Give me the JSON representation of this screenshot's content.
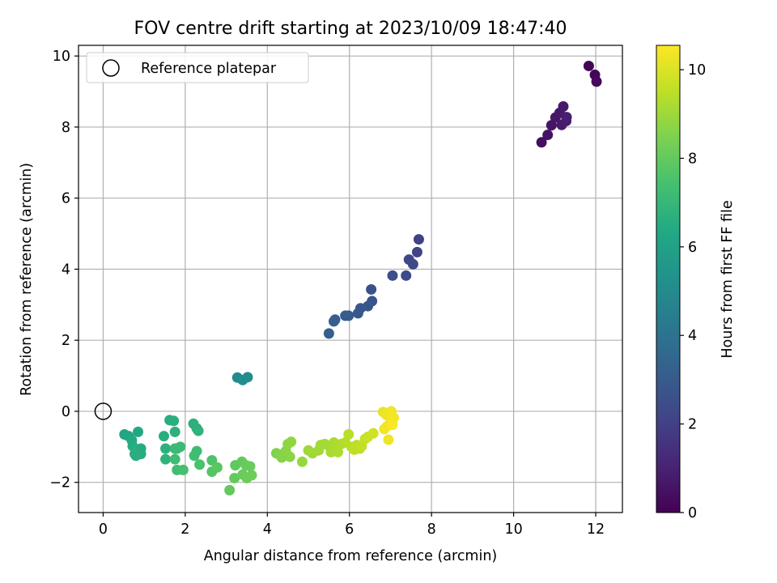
{
  "chart_data": {
    "type": "scatter",
    "title": "FOV centre drift starting at 2023/10/09 18:47:40",
    "xlabel": "Angular distance from reference (arcmin)",
    "ylabel": "Rotation from reference (arcmin)",
    "xlim": [
      -0.6,
      12.65
    ],
    "ylim": [
      -2.85,
      10.3
    ],
    "xticks": [
      0,
      2,
      4,
      6,
      8,
      10,
      12
    ],
    "yticks": [
      -2,
      0,
      2,
      4,
      6,
      8,
      10
    ],
    "xtick_labels": [
      "0",
      "2",
      "4",
      "6",
      "8",
      "10",
      "12"
    ],
    "ytick_labels": [
      "−2",
      "0",
      "2",
      "4",
      "6",
      "8",
      "10"
    ],
    "grid": true,
    "legend": {
      "label": "Reference platepar",
      "position": "top-left"
    },
    "reference_point": {
      "x": 0,
      "y": 0
    },
    "colorbar": {
      "label": "Hours from first FF file",
      "range": [
        0,
        10.55
      ],
      "ticks": [
        0,
        2,
        4,
        6,
        8,
        10
      ],
      "tick_labels": [
        "0",
        "2",
        "4",
        "6",
        "8",
        "10"
      ],
      "colormap": "viridis"
    },
    "points": [
      [
        11.83,
        9.72,
        0.1
      ],
      [
        11.98,
        9.47,
        0.15
      ],
      [
        12.02,
        9.28,
        0.2
      ],
      [
        10.68,
        7.57,
        0.4
      ],
      [
        10.83,
        7.78,
        0.5
      ],
      [
        10.92,
        8.05,
        0.6
      ],
      [
        11.02,
        8.27,
        0.65
      ],
      [
        11.12,
        8.4,
        0.7
      ],
      [
        11.21,
        8.58,
        0.75
      ],
      [
        11.17,
        8.06,
        0.8
      ],
      [
        11.28,
        8.17,
        0.85
      ],
      [
        11.29,
        8.28,
        0.9
      ],
      [
        7.69,
        4.84,
        2.0
      ],
      [
        7.65,
        4.48,
        2.1
      ],
      [
        7.45,
        4.27,
        2.2
      ],
      [
        7.55,
        4.14,
        2.3
      ],
      [
        7.38,
        3.82,
        2.4
      ],
      [
        7.05,
        3.82,
        2.5
      ],
      [
        6.53,
        3.43,
        2.6
      ],
      [
        6.55,
        3.1,
        2.7
      ],
      [
        6.45,
        2.96,
        2.8
      ],
      [
        6.27,
        2.9,
        2.85
      ],
      [
        6.21,
        2.76,
        2.9
      ],
      [
        5.98,
        2.69,
        3.0
      ],
      [
        5.9,
        2.69,
        3.05
      ],
      [
        5.65,
        2.58,
        3.1
      ],
      [
        5.62,
        2.53,
        3.15
      ],
      [
        5.5,
        2.19,
        3.2
      ],
      [
        3.27,
        0.95,
        5.0
      ],
      [
        3.4,
        0.88,
        5.05
      ],
      [
        3.52,
        0.96,
        5.1
      ],
      [
        0.52,
        -0.65,
        6.2
      ],
      [
        0.62,
        -0.7,
        6.3
      ],
      [
        0.7,
        -0.82,
        6.4
      ],
      [
        0.72,
        -0.98,
        6.5
      ],
      [
        0.77,
        -1.2,
        6.6
      ],
      [
        0.85,
        -1.1,
        6.7
      ],
      [
        0.92,
        -1.05,
        6.5
      ],
      [
        0.92,
        -1.2,
        6.5
      ],
      [
        0.85,
        -0.58,
        6.3
      ],
      [
        0.8,
        -1.25,
        6.6
      ],
      [
        1.48,
        -0.7,
        6.6
      ],
      [
        1.52,
        -1.05,
        6.7
      ],
      [
        1.52,
        -1.35,
        6.8
      ],
      [
        1.62,
        -0.25,
        6.5
      ],
      [
        1.72,
        -0.27,
        6.6
      ],
      [
        1.75,
        -0.58,
        6.7
      ],
      [
        1.75,
        -1.05,
        7.0
      ],
      [
        1.8,
        -1.05,
        7.1
      ],
      [
        1.88,
        -1.0,
        7.1
      ],
      [
        1.75,
        -1.35,
        7.2
      ],
      [
        1.8,
        -1.65,
        7.3
      ],
      [
        1.95,
        -1.65,
        7.4
      ],
      [
        2.2,
        -0.35,
        6.7
      ],
      [
        2.28,
        -0.48,
        6.7
      ],
      [
        2.32,
        -0.55,
        6.8
      ],
      [
        2.28,
        -1.12,
        7.2
      ],
      [
        2.22,
        -1.25,
        7.3
      ],
      [
        2.35,
        -1.5,
        7.5
      ],
      [
        2.65,
        -1.38,
        7.6
      ],
      [
        2.65,
        -1.7,
        7.7
      ],
      [
        2.78,
        -1.58,
        7.8
      ],
      [
        3.22,
        -1.52,
        7.9
      ],
      [
        3.38,
        -1.42,
        8.0
      ],
      [
        3.48,
        -1.52,
        8.1
      ],
      [
        3.58,
        -1.55,
        8.1
      ],
      [
        3.2,
        -1.88,
        8.0
      ],
      [
        3.4,
        -1.78,
        8.1
      ],
      [
        3.5,
        -1.88,
        8.15
      ],
      [
        3.62,
        -1.8,
        8.2
      ],
      [
        3.08,
        -2.22,
        8.0
      ],
      [
        4.22,
        -1.18,
        8.5
      ],
      [
        4.3,
        -1.22,
        8.6
      ],
      [
        4.35,
        -1.3,
        8.6
      ],
      [
        4.45,
        -1.12,
        8.7
      ],
      [
        4.5,
        -0.92,
        8.75
      ],
      [
        4.58,
        -0.86,
        8.8
      ],
      [
        4.55,
        -1.28,
        8.7
      ],
      [
        4.85,
        -1.42,
        8.9
      ],
      [
        5.0,
        -1.1,
        9.0
      ],
      [
        5.1,
        -1.18,
        9.0
      ],
      [
        5.25,
        -1.1,
        9.05
      ],
      [
        5.3,
        -0.95,
        9.1
      ],
      [
        5.4,
        -0.92,
        9.1
      ],
      [
        5.5,
        -0.98,
        9.15
      ],
      [
        5.55,
        -1.15,
        9.2
      ],
      [
        5.62,
        -0.88,
        9.2
      ],
      [
        5.7,
        -1.05,
        9.25
      ],
      [
        5.72,
        -1.15,
        9.25
      ],
      [
        5.8,
        -0.92,
        9.3
      ],
      [
        5.9,
        -0.88,
        9.35
      ],
      [
        5.98,
        -0.65,
        9.4
      ],
      [
        6.05,
        -1.0,
        9.45
      ],
      [
        6.12,
        -1.08,
        9.5
      ],
      [
        6.18,
        -0.95,
        9.5
      ],
      [
        6.25,
        -1.05,
        9.55
      ],
      [
        6.3,
        -0.98,
        9.6
      ],
      [
        6.38,
        -0.78,
        9.65
      ],
      [
        6.45,
        -0.72,
        9.7
      ],
      [
        6.58,
        -0.62,
        9.8
      ],
      [
        6.82,
        -0.02,
        10.2
      ],
      [
        6.9,
        -0.1,
        10.25
      ],
      [
        6.95,
        -0.05,
        10.3
      ],
      [
        7.02,
        0.0,
        10.35
      ],
      [
        7.08,
        -0.18,
        10.4
      ],
      [
        7.0,
        -0.28,
        10.45
      ],
      [
        6.92,
        -0.42,
        10.4
      ],
      [
        6.85,
        -0.5,
        10.35
      ],
      [
        7.05,
        -0.38,
        10.5
      ],
      [
        6.95,
        -0.8,
        10.3
      ]
    ]
  }
}
